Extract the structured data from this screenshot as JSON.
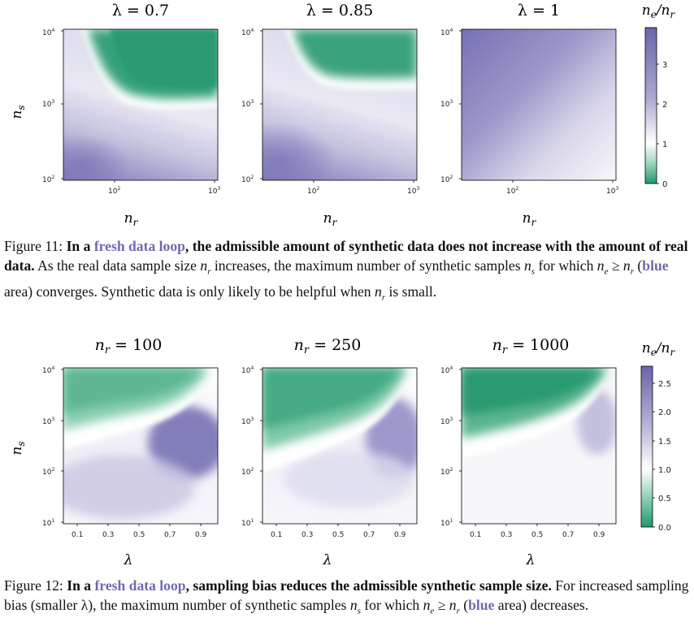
{
  "figure11": {
    "panel_titles": [
      "λ = 0.7",
      "λ = 0.85",
      "λ = 1"
    ],
    "colorbar_label": "n_e/n_r",
    "caption": {
      "label": "Figure 11:",
      "bold_a": "In a",
      "highlight": "fresh data loop",
      "bold_b": ", the admissible amount of synthetic data does not increase with the amount of real data.",
      "text_a": "As the real data sample size",
      "text_b": "increases, the maximum number of synthetic samples",
      "text_c": "for which",
      "text_d": "(",
      "blue": "blue",
      "text_e": "area) converges. Synthetic data is only likely to be helpful when",
      "text_f": "is small."
    }
  },
  "figure12": {
    "panel_titles": [
      "n_r = 100",
      "n_r = 250",
      "n_r = 1000"
    ],
    "colorbar_label": "n_e/n_r",
    "caption": {
      "label": "Figure 12:",
      "bold_a": "In a",
      "highlight": "fresh data loop",
      "bold_b": ", sampling bias reduces the admissible synthetic sample size.",
      "text_a": "For increased sampling bias (smaller λ), the maximum number of synthetic samples",
      "text_b": "for which",
      "text_c": "(",
      "blue": "blue",
      "text_d": "area) decreases."
    }
  },
  "math": {
    "n_r": "n",
    "n_r_sub": "r",
    "n_s": "n",
    "n_s_sub": "s",
    "ineq": "n",
    "ineq_e": "e",
    "ineq_ge": " ≥ ",
    "ineq_r": "n",
    "ineq_r_sub": "r"
  },
  "chart_data": [
    {
      "type": "heatmap",
      "title": "λ = 0.7",
      "xlabel": "n_r",
      "ylabel": "n_s",
      "x_scale": "log",
      "y_scale": "log",
      "xlim": [
        30,
        1000
      ],
      "ylim": [
        100,
        10000
      ],
      "x_ticks": [
        "10^2",
        "10^3"
      ],
      "y_ticks": [
        "10^2",
        "10^3",
        "10^4"
      ],
      "values_note": "n_e/n_r ratio: ~3 at bottom-left (purple), ~1 near white boundary at n_s≈1000, ~0 at top-right (green)",
      "boundary": {
        "n_r": [
          30,
          60,
          100,
          200,
          1000
        ],
        "n_s": [
          10000,
          3000,
          1500,
          900,
          800
        ]
      }
    },
    {
      "type": "heatmap",
      "title": "λ = 0.85",
      "xlabel": "n_r",
      "ylabel": "",
      "x_scale": "log",
      "y_scale": "log",
      "xlim": [
        30,
        1000
      ],
      "ylim": [
        100,
        10000
      ],
      "x_ticks": [
        "10^2",
        "10^3"
      ],
      "y_ticks": [
        "10^2",
        "10^3",
        "10^4"
      ],
      "boundary": {
        "n_r": [
          40,
          70,
          100,
          200,
          1000
        ],
        "n_s": [
          10000,
          4000,
          2200,
          1800,
          1700
        ]
      }
    },
    {
      "type": "heatmap",
      "title": "λ = 1",
      "xlabel": "n_r",
      "ylabel": "",
      "x_scale": "log",
      "y_scale": "log",
      "xlim": [
        30,
        1000
      ],
      "ylim": [
        100,
        10000
      ],
      "x_ticks": [
        "10^2",
        "10^3"
      ],
      "y_ticks": [
        "10^2",
        "10^3",
        "10^4"
      ],
      "values_note": "purple (ratio ~3) at top-left fading to white (~1) toward bottom-right"
    },
    {
      "type": "colorbar",
      "label": "n_e/n_r",
      "range": [
        0,
        3.9
      ],
      "ticks": [
        0,
        1,
        2,
        3
      ]
    },
    {
      "type": "heatmap",
      "title": "n_r = 100",
      "xlabel": "λ",
      "ylabel": "n_s",
      "x_scale": "linear",
      "y_scale": "log",
      "xlim": [
        0,
        1
      ],
      "ylim": [
        10,
        10000
      ],
      "x_ticks": [
        0.1,
        0.3,
        0.5,
        0.7,
        0.9
      ],
      "y_ticks": [
        "10^1",
        "10^2",
        "10^3",
        "10^4"
      ],
      "boundary": {
        "lambda": [
          0.0,
          0.3,
          0.6,
          0.85,
          0.97
        ],
        "n_s": [
          100,
          200,
          500,
          1500,
          10000
        ]
      }
    },
    {
      "type": "heatmap",
      "title": "n_r = 250",
      "xlabel": "λ",
      "ylabel": "",
      "x_scale": "linear",
      "y_scale": "log",
      "xlim": [
        0,
        1
      ],
      "ylim": [
        10,
        10000
      ],
      "x_ticks": [
        0.1,
        0.3,
        0.5,
        0.7,
        0.9
      ],
      "y_ticks": [
        "10^1",
        "10^2",
        "10^3",
        "10^4"
      ],
      "boundary": {
        "lambda": [
          0.0,
          0.3,
          0.6,
          0.85,
          0.97
        ],
        "n_s": [
          70,
          140,
          330,
          1100,
          10000
        ]
      }
    },
    {
      "type": "heatmap",
      "title": "n_r = 1000",
      "xlabel": "λ",
      "ylabel": "",
      "x_scale": "linear",
      "y_scale": "log",
      "xlim": [
        0,
        1
      ],
      "ylim": [
        10,
        10000
      ],
      "x_ticks": [
        0.1,
        0.3,
        0.5,
        0.7,
        0.9
      ],
      "y_ticks": [
        "10^1",
        "10^2",
        "10^3",
        "10^4"
      ],
      "boundary": {
        "lambda": [
          0.0,
          0.3,
          0.6,
          0.85,
          0.97
        ],
        "n_s": [
          100,
          180,
          350,
          1000,
          10000
        ]
      }
    },
    {
      "type": "colorbar",
      "label": "n_e/n_r",
      "range": [
        0,
        2.8
      ],
      "ticks": [
        0.0,
        0.5,
        1.0,
        1.5,
        2.0,
        2.5
      ]
    }
  ],
  "colors": {
    "purple": "#6f6aaf",
    "green": "#2a9c70",
    "white": "#ffffff",
    "highlight": "#6f6aaf"
  }
}
